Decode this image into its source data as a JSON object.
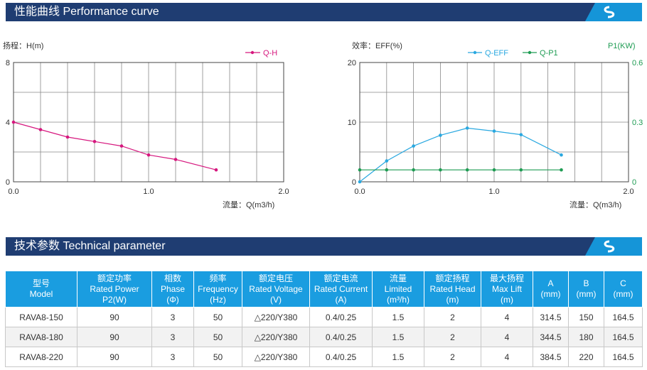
{
  "perf_title": "性能曲线 Performance curve",
  "tech_title": "技术参数 Technical parameter",
  "chart_data": [
    {
      "type": "line",
      "ylabel": "扬程：H(m)",
      "xlabel": "流量：Q(m3/h)",
      "xlim": [
        0,
        2.0
      ],
      "ylim": [
        0,
        8
      ],
      "x_ticks": [
        "0.0",
        "1.0",
        "2.0"
      ],
      "y_ticks": [
        "0",
        "4",
        "8"
      ],
      "grid": true,
      "legend": "top-right",
      "series": [
        {
          "name": "Q-H",
          "color": "#d6177e",
          "x": [
            0,
            0.2,
            0.4,
            0.6,
            0.8,
            1.0,
            1.2,
            1.5
          ],
          "y": [
            4.0,
            3.5,
            3.0,
            2.7,
            2.4,
            1.8,
            1.5,
            0.8
          ]
        }
      ]
    },
    {
      "type": "line",
      "ylabel": "效率：EFF(%)",
      "y2label": "P1(KW)",
      "xlabel": "流量：Q(m3/h)",
      "xlim": [
        0,
        2.0
      ],
      "ylim": [
        0,
        20
      ],
      "y2lim": [
        0,
        0.6
      ],
      "x_ticks": [
        "0.0",
        "1.0",
        "2.0"
      ],
      "y_ticks": [
        "0",
        "10",
        "20"
      ],
      "y2_ticks": [
        "0",
        "0.3",
        "0.6"
      ],
      "grid": true,
      "legend": "top-right",
      "series": [
        {
          "name": "Q-EFF",
          "color": "#29a8e0",
          "axis": "left",
          "x": [
            0,
            0.2,
            0.4,
            0.6,
            0.8,
            1.0,
            1.2,
            1.5
          ],
          "y": [
            0,
            3.5,
            6.0,
            7.8,
            9.0,
            8.5,
            7.9,
            4.5
          ]
        },
        {
          "name": "Q-P1",
          "color": "#1e9c53",
          "axis": "right",
          "x": [
            0,
            0.2,
            0.4,
            0.6,
            0.8,
            1.0,
            1.2,
            1.5
          ],
          "y": [
            0.06,
            0.06,
            0.06,
            0.06,
            0.06,
            0.06,
            0.06,
            0.06
          ]
        }
      ]
    }
  ],
  "table": {
    "headers": [
      [
        "型号",
        "Model"
      ],
      [
        "额定功率",
        "Rated Power",
        "P2(W)"
      ],
      [
        "相数",
        "Phase",
        "(Φ)"
      ],
      [
        "频率",
        "Frequency",
        "(Hz)"
      ],
      [
        "额定电压",
        "Rated Voltage",
        "(V)"
      ],
      [
        "额定电流",
        "Rated Current",
        "(A)"
      ],
      [
        "流量",
        "Limited",
        "(m³/h)"
      ],
      [
        "额定扬程",
        "Rated Head",
        "(m)"
      ],
      [
        "最大扬程",
        "Max Lift",
        "(m)"
      ],
      [
        "A",
        "(mm)"
      ],
      [
        "B",
        "(mm)"
      ],
      [
        "C",
        "(mm)"
      ]
    ],
    "rows": [
      [
        "RAVA8-150",
        "90",
        "3",
        "50",
        "△220/Y380",
        "0.4/0.25",
        "1.5",
        "2",
        "4",
        "314.5",
        "150",
        "164.5"
      ],
      [
        "RAVA8-180",
        "90",
        "3",
        "50",
        "△220/Y380",
        "0.4/0.25",
        "1.5",
        "2",
        "4",
        "344.5",
        "180",
        "164.5"
      ],
      [
        "RAVA8-220",
        "90",
        "3",
        "50",
        "△220/Y380",
        "0.4/0.25",
        "1.5",
        "2",
        "4",
        "384.5",
        "220",
        "164.5"
      ]
    ]
  }
}
